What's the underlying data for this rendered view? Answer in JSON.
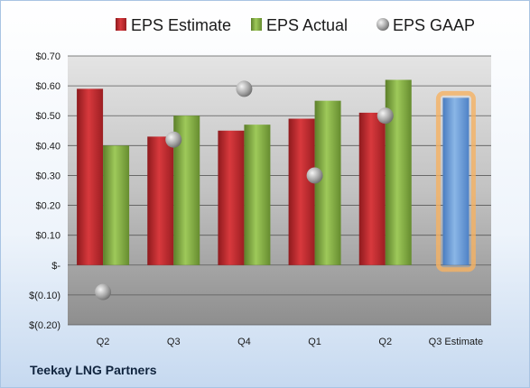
{
  "company": "Teekay LNG Partners",
  "chart_data": {
    "type": "bar",
    "categories": [
      "Q2",
      "Q3",
      "Q4",
      "Q1",
      "Q2",
      "Q3 Estimate"
    ],
    "series": [
      {
        "name": "EPS Estimate",
        "type": "bar",
        "color": "#c0282d",
        "values": [
          0.59,
          0.43,
          0.45,
          0.49,
          0.51,
          null
        ]
      },
      {
        "name": "EPS Actual",
        "type": "bar",
        "color": "#8bb34a",
        "values": [
          0.4,
          0.5,
          0.47,
          0.55,
          0.62,
          null
        ]
      },
      {
        "name": "EPS GAAP",
        "type": "scatter",
        "color": "#a6a6a6",
        "values": [
          -0.09,
          0.42,
          0.59,
          0.3,
          0.5,
          null
        ]
      },
      {
        "name": "Q3 Estimate",
        "type": "bar",
        "color": "#6fa0d8",
        "highlight": "#f5b263",
        "values": [
          null,
          null,
          null,
          null,
          null,
          0.56
        ]
      }
    ],
    "y_ticks": [
      "$(0.20)",
      "$(0.10)",
      "$-",
      "$0.10",
      "$0.20",
      "$0.30",
      "$0.40",
      "$0.50",
      "$0.60",
      "$0.70"
    ],
    "y_tick_values": [
      -0.2,
      -0.1,
      0,
      0.1,
      0.2,
      0.3,
      0.4,
      0.5,
      0.6,
      0.7
    ],
    "ylim": [
      -0.2,
      0.7
    ],
    "grid": true,
    "legend": "top"
  }
}
